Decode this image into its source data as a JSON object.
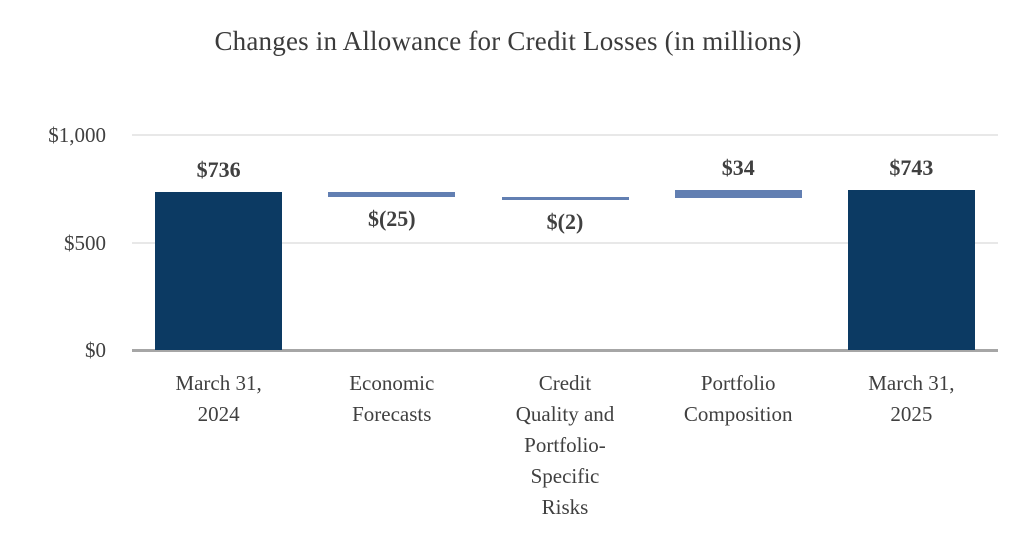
{
  "chart_data": {
    "type": "bar",
    "subtype": "waterfall",
    "title": "Changes in Allowance for Credit Losses (in millions)",
    "xlabel": "",
    "ylabel": "",
    "ylim": [
      0,
      1000
    ],
    "y_ticks": [
      {
        "value": 0,
        "label": "$0"
      },
      {
        "value": 500,
        "label": "$500"
      },
      {
        "value": 1000,
        "label": "$1,000"
      }
    ],
    "grid": "horizontal-on",
    "legend": "none",
    "colors": {
      "total_bar": "#0c3a63",
      "delta_bar": "#627fb2",
      "gridline": "#e8e8e8",
      "axis_line": "#a6a6a6",
      "text": "#404040"
    },
    "categories": [
      "March 31, 2024",
      "Economic Forecasts",
      "Credit Quality and Portfolio-Specific Risks",
      "Portfolio Composition",
      "March 31, 2025"
    ],
    "bars": [
      {
        "category": "March 31, 2024",
        "category_lines": [
          "March 31,",
          "2024"
        ],
        "kind": "total",
        "start": 0,
        "end": 736,
        "value": 736,
        "data_label": "$736",
        "label_position": "above"
      },
      {
        "category": "Economic Forecasts",
        "category_lines": [
          "Economic",
          "Forecasts"
        ],
        "kind": "delta",
        "start": 736,
        "end": 711,
        "value": -25,
        "data_label": "$(25)",
        "label_position": "below"
      },
      {
        "category": "Credit Quality and Portfolio-Specific Risks",
        "category_lines": [
          "Credit",
          "Quality and",
          "Portfolio-",
          "Specific",
          "Risks"
        ],
        "kind": "delta",
        "start": 711,
        "end": 709,
        "value": -2,
        "data_label": "$(2)",
        "label_position": "below"
      },
      {
        "category": "Portfolio Composition",
        "category_lines": [
          "Portfolio",
          "Composition"
        ],
        "kind": "delta",
        "start": 709,
        "end": 743,
        "value": 34,
        "data_label": "$34",
        "label_position": "above"
      },
      {
        "category": "March 31, 2025",
        "category_lines": [
          "March 31,",
          "2025"
        ],
        "kind": "total",
        "start": 0,
        "end": 743,
        "value": 743,
        "data_label": "$743",
        "label_position": "above"
      }
    ]
  }
}
